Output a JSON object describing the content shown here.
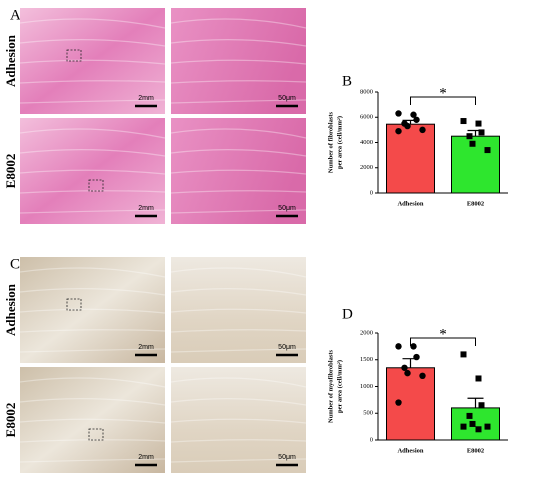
{
  "figure": {
    "panel_a": {
      "label": "A",
      "rows": [
        "Adhesion",
        "E8002"
      ],
      "scale_bars": [
        "2mm",
        "50μm"
      ]
    },
    "panel_c": {
      "label": "C",
      "rows": [
        "Adhesion",
        "E8002"
      ],
      "scale_bars": [
        "2mm",
        "50μm"
      ]
    }
  },
  "chart_data": [
    {
      "type": "bar",
      "panel_label": "B",
      "ylabel": [
        "Number of fibroblasts",
        "per area (cell/mm²)"
      ],
      "categories": [
        "Adhesion",
        "E8002"
      ],
      "values": [
        5450,
        4500
      ],
      "errors": [
        300,
        450
      ],
      "points": [
        [
          6300,
          6200,
          5800,
          5500,
          5300,
          5000,
          4900
        ],
        [
          5700,
          5500,
          4800,
          4500,
          3900,
          3400
        ]
      ],
      "colors": [
        "#f44a4a",
        "#2ee62e"
      ],
      "ylim": [
        0,
        8000
      ],
      "yticks": [
        0,
        2000,
        4000,
        6000,
        8000
      ],
      "annotation": "*"
    },
    {
      "type": "bar",
      "panel_label": "D",
      "ylabel": [
        "Number of myofibroblasts",
        "per area (cell/mm²)"
      ],
      "categories": [
        "Adhesion",
        "E8002"
      ],
      "values": [
        1350,
        600
      ],
      "errors": [
        170,
        180
      ],
      "points": [
        [
          1750,
          1750,
          1550,
          1350,
          1250,
          1200,
          700
        ],
        [
          1600,
          1150,
          650,
          450,
          300,
          250,
          250,
          200
        ]
      ],
      "colors": [
        "#f44a4a",
        "#2ee62e"
      ],
      "ylim": [
        0,
        2000
      ],
      "yticks": [
        0,
        500,
        1000,
        1500,
        2000
      ],
      "annotation": "*"
    }
  ]
}
